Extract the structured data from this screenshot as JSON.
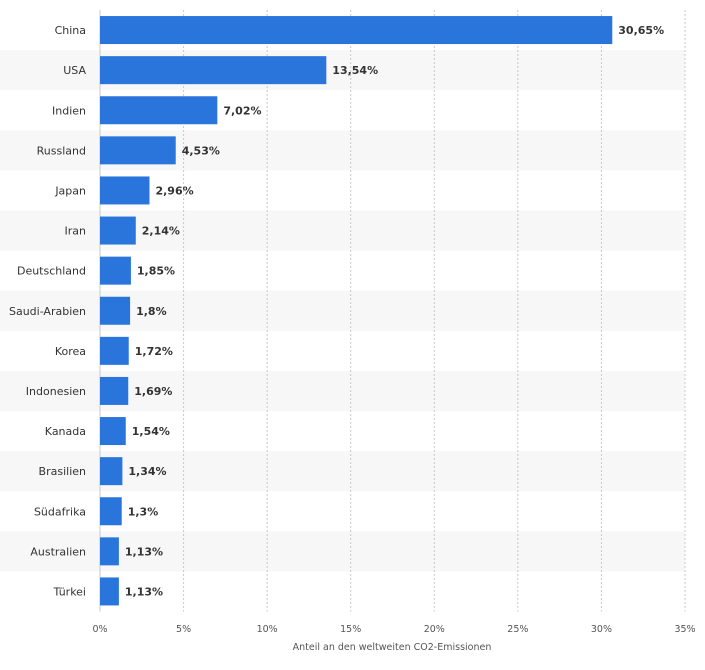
{
  "chart_data": {
    "type": "bar",
    "orientation": "horizontal",
    "categories": [
      "China",
      "USA",
      "Indien",
      "Russland",
      "Japan",
      "Iran",
      "Deutschland",
      "Saudi-Arabien",
      "Korea",
      "Indonesien",
      "Kanada",
      "Brasilien",
      "Südafrika",
      "Australien",
      "Türkei"
    ],
    "values": [
      30.65,
      13.54,
      7.02,
      4.53,
      2.96,
      2.14,
      1.85,
      1.8,
      1.72,
      1.69,
      1.54,
      1.34,
      1.3,
      1.13,
      1.13
    ],
    "value_labels": [
      "30,65%",
      "13,54%",
      "7,02%",
      "4,53%",
      "2,96%",
      "2,14%",
      "1,85%",
      "1,8%",
      "1,72%",
      "1,69%",
      "1,54%",
      "1,34%",
      "1,3%",
      "1,13%",
      "1,13%"
    ],
    "title": "",
    "xlabel": "Anteil an den weltweiten CO2-Emissionen",
    "ylabel": "",
    "xlim": [
      0,
      35
    ],
    "ticks": [
      0,
      5,
      10,
      15,
      20,
      25,
      30,
      35
    ],
    "tick_labels": [
      "0%",
      "5%",
      "10%",
      "15%",
      "20%",
      "25%",
      "30%",
      "35%"
    ],
    "grid": "vertical dashed",
    "legend": "none",
    "colors": {
      "bar": "#2a75db",
      "band": "#f7f7f7",
      "grid": "#c8c8c8",
      "text": "#333333"
    }
  }
}
